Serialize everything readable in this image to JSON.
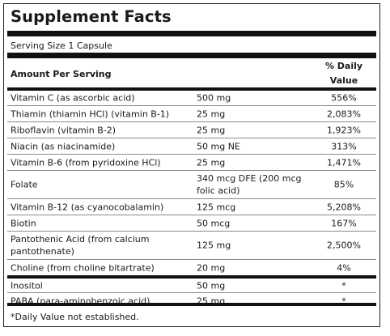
{
  "title": "Supplement Facts",
  "serving_size": "Serving Size 1 Capsule",
  "header": {
    "amount": "Amount Per Serving",
    "dv_line1": "% Daily",
    "dv_line2": "Value"
  },
  "rows": [
    {
      "name": "Vitamin C (as ascorbic acid)",
      "amount": "500 mg",
      "dv": "556%"
    },
    {
      "name": "Thiamin (thiamin HCl) (vitamin B-1)",
      "amount": "25 mg",
      "dv": "2,083%"
    },
    {
      "name": "Riboflavin (vitamin B-2)",
      "amount": "25 mg",
      "dv": "1,923%"
    },
    {
      "name": "Niacin (as niacinamide)",
      "amount": "50 mg NE",
      "dv": "313%"
    },
    {
      "name": "Vitamin B-6 (from pyridoxine HCl)",
      "amount": "25 mg",
      "dv": "1,471%"
    },
    {
      "name": "Folate",
      "amount": "340 mcg DFE (200 mcg folic acid)",
      "dv": "85%"
    },
    {
      "name": "Vitamin B-12 (as cyanocobalamin)",
      "amount": "125 mcg",
      "dv": "5,208%"
    },
    {
      "name": "Biotin",
      "amount": "50 mcg",
      "dv": "167%"
    },
    {
      "name": "Pantothenic Acid (from calcium pantothenate)",
      "amount": "125 mg",
      "dv": "2,500%"
    },
    {
      "name": "Choline (from choline bitartrate)",
      "amount": "20 mg",
      "dv": "4%"
    },
    {
      "name": "Inositol",
      "amount": "50 mg",
      "dv": "*"
    },
    {
      "name": "PABA (para-aminobenzoic acid)",
      "amount": "25 mg",
      "dv": "*"
    }
  ],
  "footnote": "*Daily Value not established."
}
